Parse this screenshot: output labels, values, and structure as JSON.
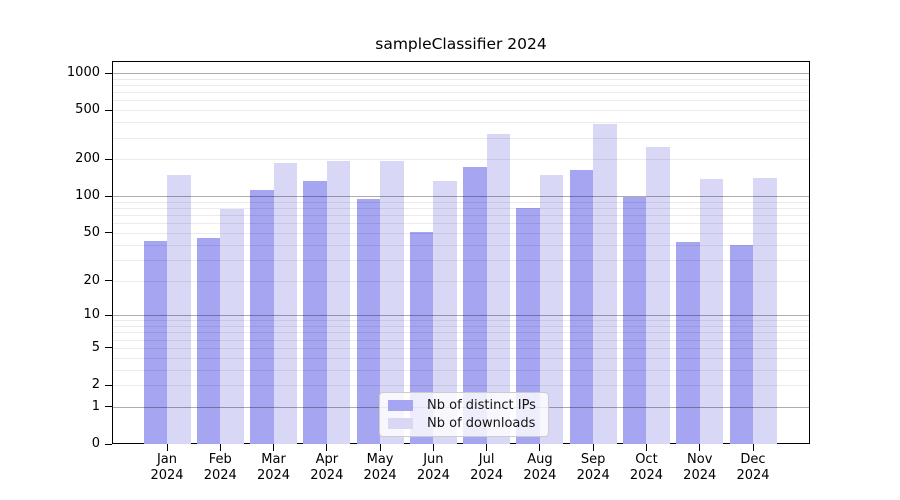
{
  "chart_data": {
    "type": "bar",
    "title": "sampleClassifier 2024",
    "categories": [
      {
        "month": "Jan",
        "year": "2024"
      },
      {
        "month": "Feb",
        "year": "2024"
      },
      {
        "month": "Mar",
        "year": "2024"
      },
      {
        "month": "Apr",
        "year": "2024"
      },
      {
        "month": "May",
        "year": "2024"
      },
      {
        "month": "Jun",
        "year": "2024"
      },
      {
        "month": "Jul",
        "year": "2024"
      },
      {
        "month": "Aug",
        "year": "2024"
      },
      {
        "month": "Sep",
        "year": "2024"
      },
      {
        "month": "Oct",
        "year": "2024"
      },
      {
        "month": "Nov",
        "year": "2024"
      },
      {
        "month": "Dec",
        "year": "2024"
      }
    ],
    "series": [
      {
        "name": "Nb of distinct IPs",
        "color": "#a5a5f1",
        "values": [
          43,
          45,
          113,
          134,
          95,
          51,
          174,
          80,
          164,
          99,
          42,
          40
        ]
      },
      {
        "name": "Nb of downloads",
        "color": "#d8d8f6",
        "values": [
          150,
          79,
          187,
          194,
          194,
          134,
          321,
          149,
          388,
          252,
          139,
          141
        ]
      }
    ],
    "xlabel": "",
    "ylabel": "",
    "y_scale": "log1p",
    "y_ticks": [
      0,
      1,
      2,
      5,
      10,
      20,
      50,
      100,
      200,
      500,
      1000
    ],
    "y_major_gridlines": [
      1,
      10,
      100,
      1000
    ],
    "ylim": [
      0,
      1250
    ],
    "grid": true,
    "legend_position": "lower center",
    "colors": {
      "major_grid": "rgba(0,0,0,0.32)",
      "minor_grid": "rgba(0,0,0,0.08)",
      "spine": "#000000",
      "text": "#000000"
    }
  }
}
